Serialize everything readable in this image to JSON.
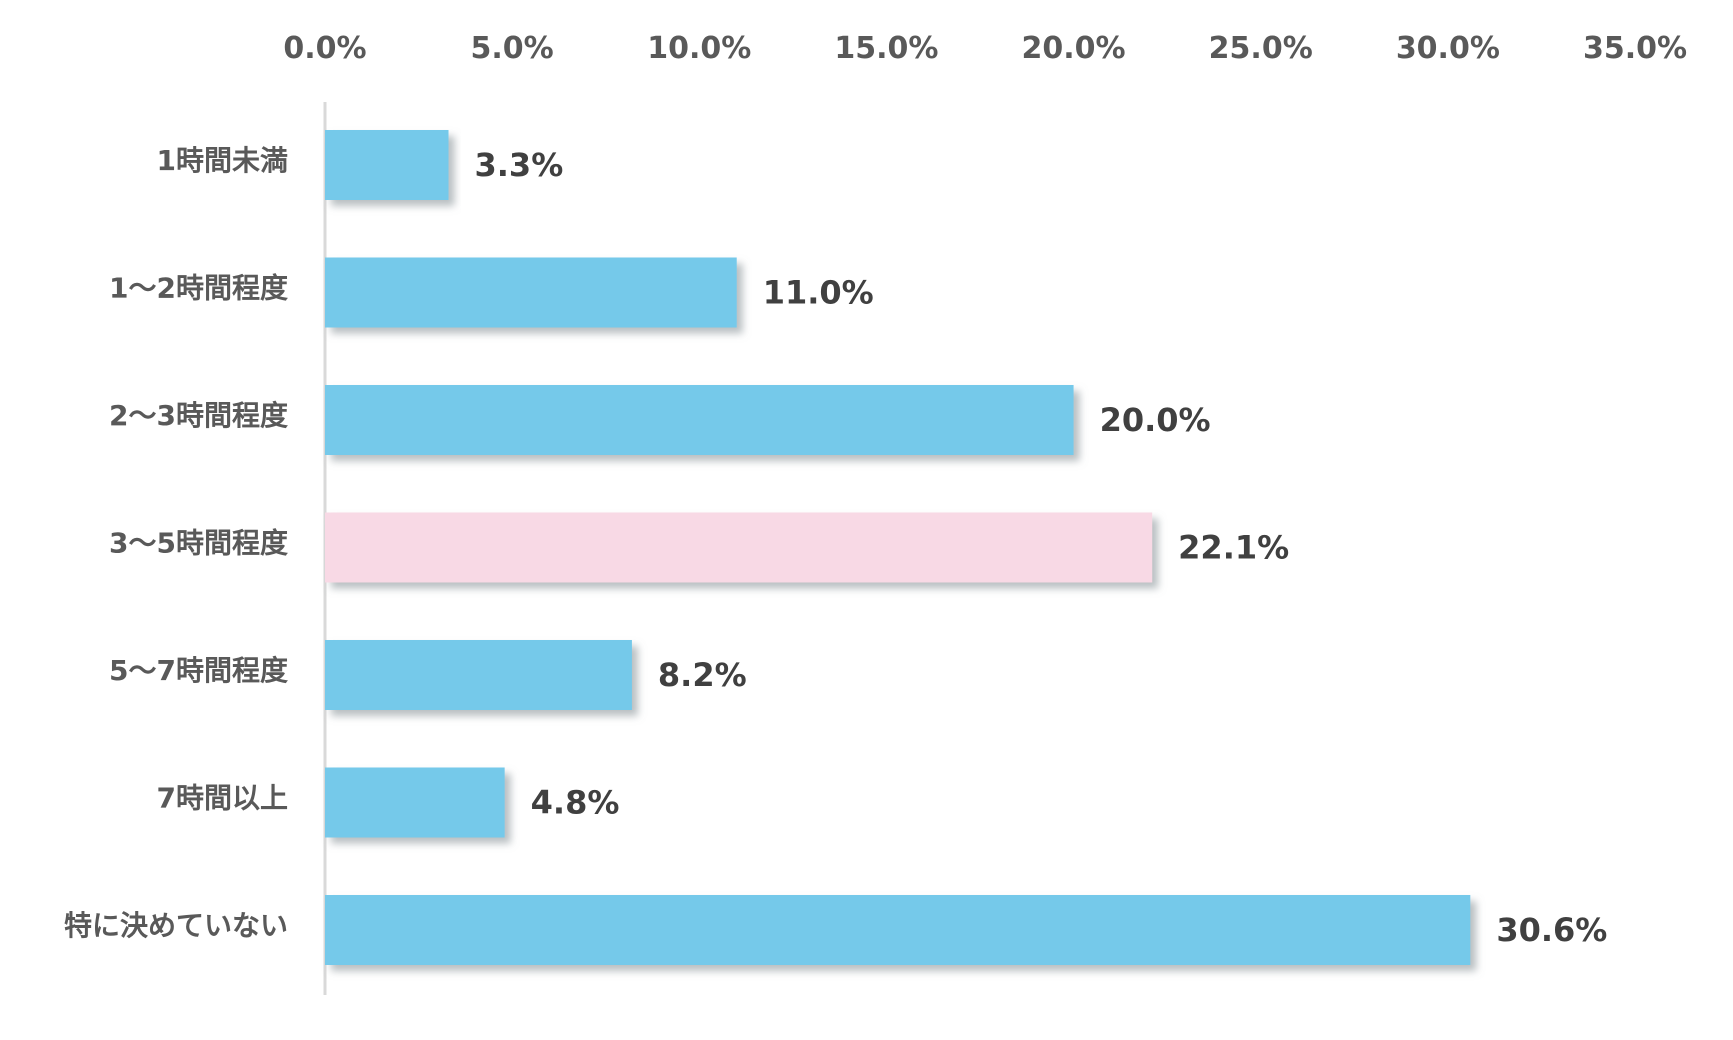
{
  "chart_data": {
    "type": "bar",
    "orientation": "horizontal",
    "categories": [
      "1時間未満",
      "1〜2時間程度",
      "2〜3時間程度",
      "3〜5時間程度",
      "5〜7時間程度",
      "7時間以上",
      "特に決めていない"
    ],
    "values": [
      3.3,
      11.0,
      20.0,
      22.1,
      8.2,
      4.8,
      30.6
    ],
    "value_labels": [
      "3.3%",
      "11.0%",
      "20.0%",
      "22.1%",
      "8.2%",
      "4.8%",
      "30.6%"
    ],
    "xlim": [
      0,
      35
    ],
    "x_ticks": [
      0,
      5,
      10,
      15,
      20,
      25,
      30,
      35
    ],
    "x_tick_labels": [
      "0.0%",
      "5.0%",
      "10.0%",
      "15.0%",
      "20.0%",
      "25.0%",
      "30.0%",
      "35.0%"
    ],
    "x_axis_position": "top",
    "grid": false,
    "legend": "none",
    "title": "",
    "xlabel": "",
    "ylabel": "",
    "colors": {
      "bar": "#74C9EA",
      "highlight": "#F8D9E5",
      "axis": "#D9D9D9",
      "shadow": "#9aa4aa"
    },
    "highlight_index": 3
  }
}
